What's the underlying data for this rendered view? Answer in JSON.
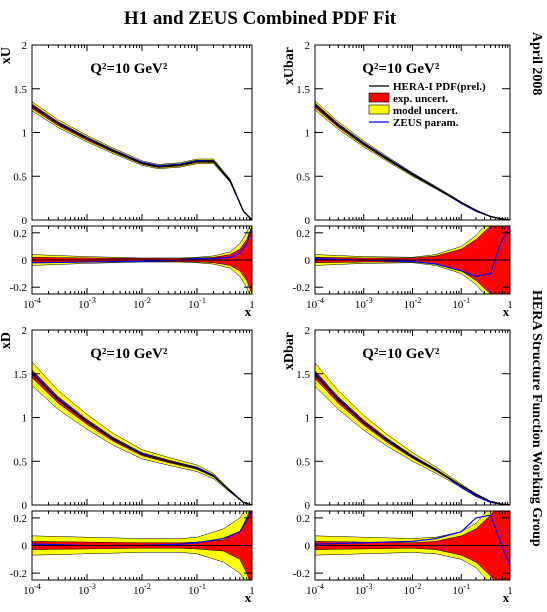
{
  "title": "H1 and ZEUS Combined PDF Fit",
  "side_date": "April 2008",
  "side_group": "HERA Structure Function Working Group",
  "legend": [
    {
      "label": "HERA-I PDF(prel.)",
      "kind": "line",
      "color": "#000000"
    },
    {
      "label": "exp. uncert.",
      "kind": "box",
      "color": "#ff0000"
    },
    {
      "label": "model uncert.",
      "kind": "box",
      "color": "#ffff00"
    },
    {
      "label": "ZEUS param.",
      "kind": "line",
      "color": "#0000ff"
    }
  ],
  "colors": {
    "central": "#000000",
    "exp": "#ff0000",
    "model": "#ffff00",
    "zeus": "#0000ff"
  },
  "chart_data": [
    {
      "type": "area",
      "panel": "xU",
      "ylabel": "xU",
      "annotation": "Q²=10 GeV²",
      "xlabel": "x",
      "xscale": "log",
      "xlim": [
        0.0001,
        1
      ],
      "ylim": [
        0,
        2
      ],
      "yticks": [
        "0",
        "0.5",
        "1",
        "1.5",
        "2"
      ],
      "x": [
        0.0001,
        0.0003,
        0.001,
        0.003,
        0.01,
        0.02,
        0.05,
        0.1,
        0.2,
        0.4,
        0.7,
        1
      ],
      "series": [
        {
          "name": "HERA-I PDF(prel.)",
          "values": [
            1.3,
            1.1,
            0.93,
            0.79,
            0.65,
            0.61,
            0.63,
            0.67,
            0.67,
            0.45,
            0.1,
            0.0
          ]
        },
        {
          "name": "ZEUS param.",
          "values": [
            1.31,
            1.11,
            0.94,
            0.8,
            0.66,
            0.62,
            0.64,
            0.68,
            0.67,
            0.44,
            0.1,
            0.0
          ]
        }
      ],
      "band_exp": 0.02,
      "band_model": 0.04
    },
    {
      "type": "area",
      "panel": "xUbar",
      "ylabel": "xUbar",
      "annotation": "Q²=10 GeV²",
      "xlabel": "x",
      "xscale": "log",
      "xlim": [
        0.0001,
        1
      ],
      "ylim": [
        0,
        2
      ],
      "yticks": [
        "0",
        "0.5",
        "1",
        "1.5",
        "2"
      ],
      "x": [
        0.0001,
        0.0003,
        0.001,
        0.003,
        0.01,
        0.03,
        0.1,
        0.2,
        0.4,
        0.7,
        1
      ],
      "series": [
        {
          "name": "HERA-I PDF(prel.)",
          "values": [
            1.31,
            1.08,
            0.87,
            0.7,
            0.52,
            0.37,
            0.2,
            0.11,
            0.04,
            0.01,
            0.0
          ]
        },
        {
          "name": "ZEUS param.",
          "values": [
            1.32,
            1.09,
            0.88,
            0.71,
            0.53,
            0.37,
            0.19,
            0.1,
            0.04,
            0.01,
            0.0
          ]
        }
      ],
      "band_exp": 0.02,
      "band_model": 0.04
    },
    {
      "type": "area",
      "panel": "xD",
      "ylabel": "xD",
      "annotation": "Q²=10 GeV²",
      "xlabel": "x",
      "xscale": "log",
      "xlim": [
        0.0001,
        1
      ],
      "ylim": [
        0,
        2
      ],
      "yticks": [
        "0",
        "0.5",
        "1",
        "1.5",
        "2"
      ],
      "x": [
        0.0001,
        0.0003,
        0.001,
        0.003,
        0.01,
        0.03,
        0.1,
        0.2,
        0.4,
        0.7,
        1
      ],
      "series": [
        {
          "name": "HERA-I PDF(prel.)",
          "values": [
            1.5,
            1.2,
            0.95,
            0.75,
            0.58,
            0.5,
            0.42,
            0.33,
            0.16,
            0.03,
            0.0
          ]
        },
        {
          "name": "ZEUS param.",
          "values": [
            1.52,
            1.22,
            0.96,
            0.76,
            0.59,
            0.5,
            0.43,
            0.34,
            0.16,
            0.03,
            0.0
          ]
        }
      ],
      "band_exp": 0.03,
      "band_model": 0.09
    },
    {
      "type": "area",
      "panel": "xDbar",
      "ylabel": "xDbar",
      "annotation": "Q²=10 GeV²",
      "xlabel": "x",
      "xscale": "log",
      "xlim": [
        0.0001,
        1
      ],
      "ylim": [
        0,
        2
      ],
      "yticks": [
        "0",
        "0.5",
        "1",
        "1.5",
        "2"
      ],
      "x": [
        0.0001,
        0.0003,
        0.001,
        0.003,
        0.01,
        0.03,
        0.1,
        0.2,
        0.4,
        0.7,
        1
      ],
      "series": [
        {
          "name": "HERA-I PDF(prel.)",
          "values": [
            1.49,
            1.2,
            0.94,
            0.74,
            0.55,
            0.4,
            0.22,
            0.12,
            0.04,
            0.01,
            0.0
          ]
        },
        {
          "name": "ZEUS param.",
          "values": [
            1.51,
            1.22,
            0.95,
            0.75,
            0.56,
            0.41,
            0.2,
            0.1,
            0.03,
            0.01,
            0.0
          ]
        }
      ],
      "band_exp": 0.03,
      "band_model": 0.09
    },
    {
      "type": "area",
      "panel": "xU-ratio",
      "xlabel": "x",
      "xscale": "log",
      "xlim": [
        0.0001,
        1
      ],
      "ylim": [
        -0.25,
        0.25
      ],
      "yticks": [
        "-0.2",
        "0",
        "0.2"
      ],
      "x": [
        0.0001,
        0.001,
        0.01,
        0.05,
        0.1,
        0.2,
        0.4,
        0.6,
        0.8,
        1
      ],
      "exp": [
        0.02,
        0.015,
        0.012,
        0.012,
        0.015,
        0.02,
        0.04,
        0.08,
        0.15,
        0.25
      ],
      "model": [
        0.04,
        0.025,
        0.015,
        0.015,
        0.02,
        0.03,
        0.06,
        0.12,
        0.2,
        0.3
      ],
      "zeus": [
        -0.02,
        -0.015,
        -0.01,
        0.0,
        0.01,
        0.01,
        0.02,
        0.05,
        0.12,
        0.25
      ]
    },
    {
      "type": "area",
      "panel": "xUbar-ratio",
      "xlabel": "x",
      "xscale": "log",
      "xlim": [
        0.0001,
        1
      ],
      "ylim": [
        -0.25,
        0.25
      ],
      "yticks": [
        "-0.2",
        "0",
        "0.2"
      ],
      "x": [
        0.0001,
        0.001,
        0.01,
        0.03,
        0.1,
        0.2,
        0.4,
        0.6,
        1
      ],
      "exp": [
        0.02,
        0.015,
        0.015,
        0.03,
        0.08,
        0.15,
        0.25,
        0.3,
        0.3
      ],
      "model": [
        0.04,
        0.025,
        0.02,
        0.04,
        0.1,
        0.18,
        0.3,
        0.35,
        0.35
      ],
      "zeus": [
        0.01,
        0.0,
        -0.01,
        -0.03,
        -0.08,
        -0.12,
        -0.1,
        0.1,
        0.25
      ]
    },
    {
      "type": "area",
      "panel": "xD-ratio",
      "xlabel": "x",
      "xscale": "log",
      "xlim": [
        0.0001,
        1
      ],
      "ylim": [
        -0.25,
        0.25
      ],
      "yticks": [
        "-0.2",
        "0",
        "0.2"
      ],
      "x": [
        0.0001,
        0.001,
        0.01,
        0.05,
        0.1,
        0.3,
        0.6,
        0.8,
        1
      ],
      "exp": [
        0.03,
        0.025,
        0.02,
        0.02,
        0.025,
        0.04,
        0.1,
        0.2,
        0.3
      ],
      "model": [
        0.07,
        0.06,
        0.05,
        0.05,
        0.06,
        0.12,
        0.2,
        0.28,
        0.35
      ],
      "zeus": [
        0.01,
        0.0,
        0.0,
        0.01,
        0.02,
        0.05,
        0.1,
        0.18,
        0.25
      ]
    },
    {
      "type": "area",
      "panel": "xDbar-ratio",
      "xlabel": "x",
      "xscale": "log",
      "xlim": [
        0.0001,
        1
      ],
      "ylim": [
        -0.25,
        0.25
      ],
      "yticks": [
        "-0.2",
        "0",
        "0.2"
      ],
      "x": [
        0.0001,
        0.001,
        0.01,
        0.03,
        0.1,
        0.2,
        0.4,
        0.6,
        1
      ],
      "exp": [
        0.03,
        0.025,
        0.02,
        0.03,
        0.07,
        0.12,
        0.22,
        0.3,
        0.35
      ],
      "model": [
        0.07,
        0.06,
        0.05,
        0.06,
        0.1,
        0.16,
        0.28,
        0.35,
        0.4
      ],
      "zeus": [
        0.01,
        0.02,
        0.03,
        0.05,
        0.1,
        0.2,
        0.22,
        0.05,
        -0.15
      ]
    }
  ]
}
